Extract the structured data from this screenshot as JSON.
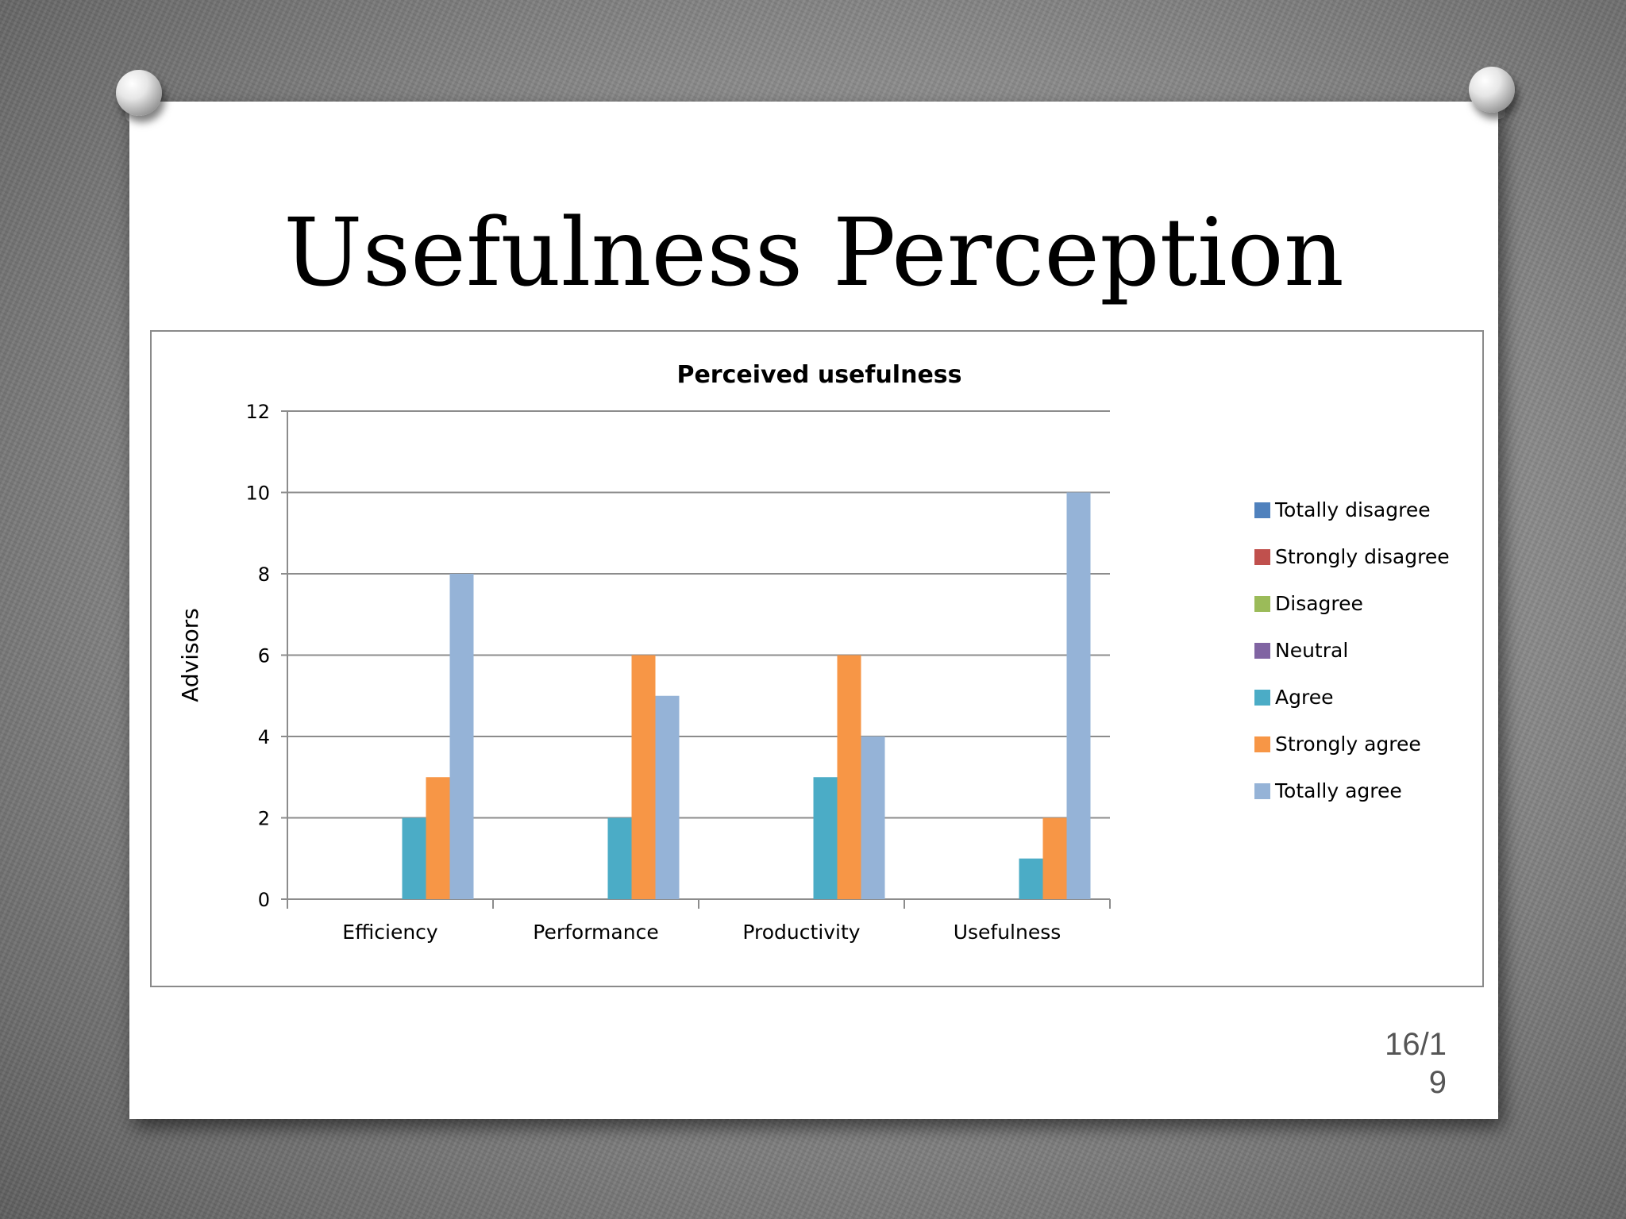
{
  "slide": {
    "title": "Usefulness Perception",
    "page_number_line1": "16/1",
    "page_number_line2": "9"
  },
  "chart_data": {
    "type": "bar",
    "title": "Perceived usefulness",
    "xlabel": "",
    "ylabel": "Advisors",
    "ylim": [
      0,
      12
    ],
    "yticks": [
      0,
      2,
      4,
      6,
      8,
      10,
      12
    ],
    "grid": true,
    "legend_position": "right",
    "categories": [
      "Efficiency",
      "Performance",
      "Productivity",
      "Usefulness"
    ],
    "series": [
      {
        "name": "Totally disagree",
        "color": "#4f81bd",
        "values": [
          0,
          0,
          0,
          0
        ]
      },
      {
        "name": "Strongly disagree",
        "color": "#c0504d",
        "values": [
          0,
          0,
          0,
          0
        ]
      },
      {
        "name": "Disagree",
        "color": "#9bbb59",
        "values": [
          0,
          0,
          0,
          0
        ]
      },
      {
        "name": "Neutral",
        "color": "#8064a2",
        "values": [
          0,
          0,
          0,
          0
        ]
      },
      {
        "name": "Agree",
        "color": "#4bacc6",
        "values": [
          2,
          2,
          3,
          1
        ]
      },
      {
        "name": "Strongly agree",
        "color": "#f79646",
        "values": [
          3,
          6,
          6,
          2
        ]
      },
      {
        "name": "Totally agree",
        "color": "#95b3d7",
        "values": [
          8,
          5,
          4,
          10
        ]
      }
    ]
  }
}
